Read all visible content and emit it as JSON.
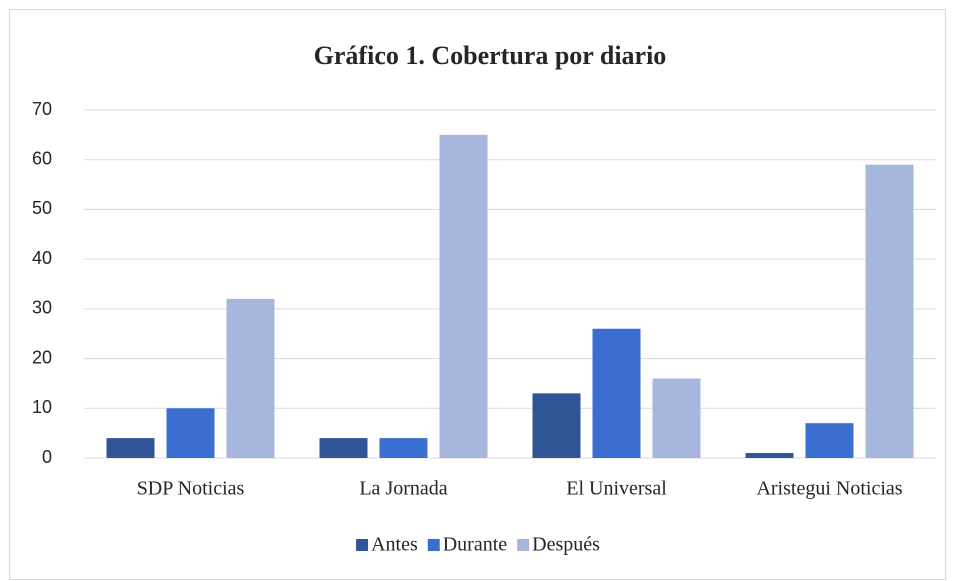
{
  "chart_data": {
    "type": "bar",
    "title": "Gráfico 1. Cobertura por diario",
    "categories": [
      "SDP Noticias",
      "La Jornada",
      "El Universal",
      "Aristegui Noticias"
    ],
    "series": [
      {
        "name": "Antes",
        "color": "#2f5597",
        "values": [
          4,
          4,
          13,
          1
        ]
      },
      {
        "name": "Durante",
        "color": "#3b6fcf",
        "values": [
          10,
          4,
          26,
          7
        ]
      },
      {
        "name": "Después",
        "color": "#a7b6dc",
        "values": [
          32,
          65,
          16,
          59
        ]
      }
    ],
    "ylim": [
      0,
      70
    ],
    "yticks": [
      0,
      10,
      20,
      30,
      40,
      50,
      60,
      70
    ],
    "grid": true,
    "legend": "bottom"
  }
}
